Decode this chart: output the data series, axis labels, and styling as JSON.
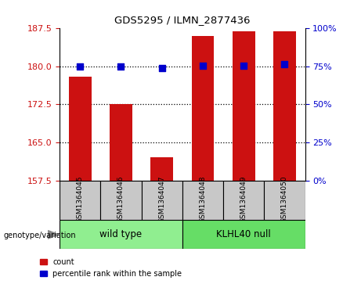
{
  "title": "GDS5295 / ILMN_2877436",
  "samples": [
    "GSM1364045",
    "GSM1364046",
    "GSM1364047",
    "GSM1364048",
    "GSM1364049",
    "GSM1364050"
  ],
  "bar_values": [
    178.0,
    172.5,
    162.0,
    186.0,
    187.0,
    187.0
  ],
  "dot_values": [
    180.0,
    180.0,
    179.7,
    180.2,
    180.2,
    180.5
  ],
  "ymin": 157.5,
  "ymax": 187.5,
  "yticks_left": [
    157.5,
    165.0,
    172.5,
    180.0,
    187.5
  ],
  "yticks_right_pct": [
    0,
    25,
    50,
    75,
    100
  ],
  "bar_color": "#cc1111",
  "dot_color": "#0000cc",
  "bar_bottom": 157.5,
  "groups": [
    {
      "label": "wild type",
      "start": 0,
      "end": 3,
      "color": "#90ee90"
    },
    {
      "label": "KLHL40 null",
      "start": 3,
      "end": 6,
      "color": "#66dd66"
    }
  ],
  "group_label_prefix": "genotype/variation",
  "legend_items": [
    {
      "color": "#cc1111",
      "label": "count"
    },
    {
      "color": "#0000cc",
      "label": "percentile rank within the sample"
    }
  ],
  "tick_label_color_left": "#cc1111",
  "tick_label_color_right": "#0000cc",
  "bg_color_plot": "#ffffff",
  "sample_box_color": "#c8c8c8",
  "bar_width": 0.55,
  "hgrid_lines": [
    180.0,
    172.5,
    165.0
  ]
}
